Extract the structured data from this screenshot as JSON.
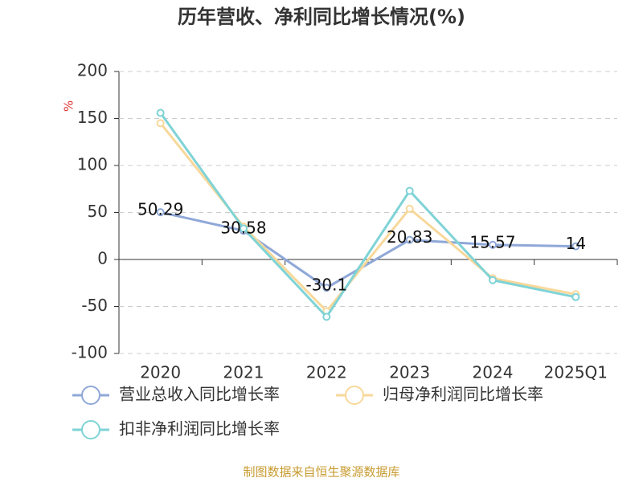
{
  "chart_data": {
    "type": "line",
    "title": "历年营收、净利同比增长情况(%)",
    "y_label": "%",
    "categories": [
      "2020",
      "2021",
      "2022",
      "2023",
      "2024",
      "2025Q1"
    ],
    "series": [
      {
        "name": "营业总收入同比增长率",
        "color": "#8fa8d8",
        "values": [
          50.29,
          30.58,
          -30.1,
          20.83,
          15.57,
          14
        ],
        "data_labels": true
      },
      {
        "name": "归母净利润同比增长率",
        "color": "#f8d89a",
        "values": [
          145,
          35,
          -55,
          54,
          -20,
          -37
        ]
      },
      {
        "name": "扣非净利润同比增长率",
        "color": "#7fd3d6",
        "values": [
          156,
          33,
          -61,
          73,
          -22,
          -40
        ]
      }
    ],
    "ylim": [
      -100,
      200
    ],
    "yticks": [
      -100,
      -50,
      0,
      50,
      100,
      150,
      200
    ],
    "grid": true,
    "source": "制图数据来自恒生聚源数据库"
  }
}
